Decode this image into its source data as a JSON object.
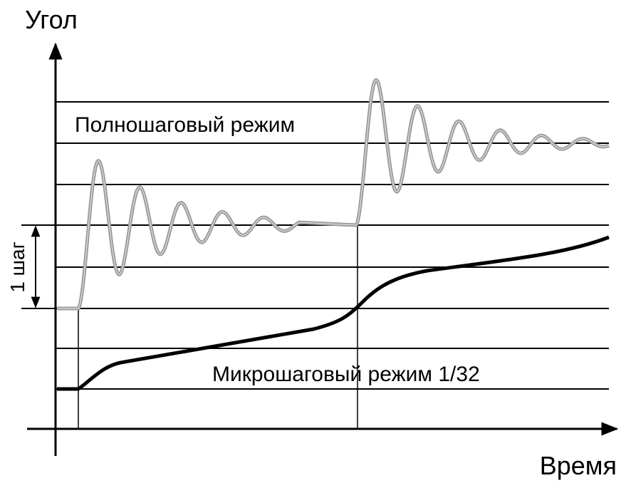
{
  "axes": {
    "y_label": "Угол",
    "x_label": "Время"
  },
  "annotations": {
    "full_step": "Полношаговый режим",
    "micro_step": "Микрошаговый режим 1/32",
    "step_size": "1 шаг"
  }
}
